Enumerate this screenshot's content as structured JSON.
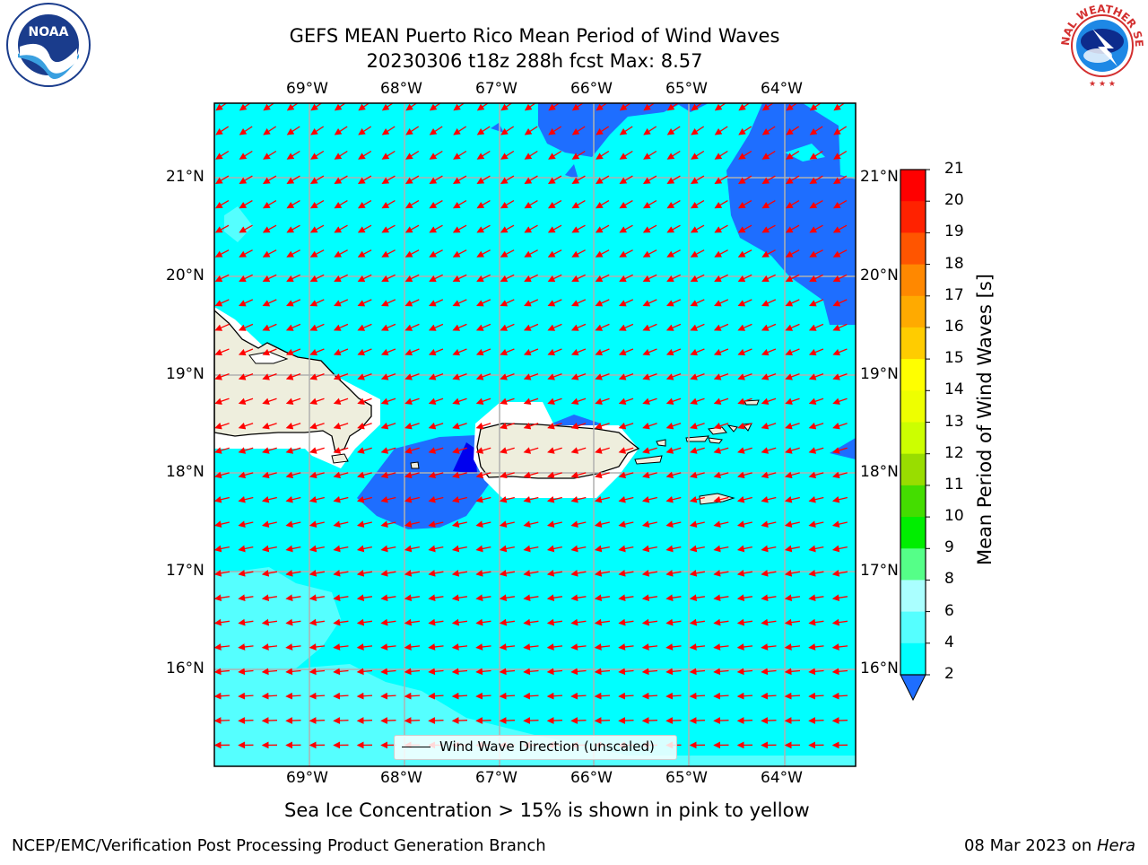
{
  "header": {
    "title_line1": "GEFS MEAN Puerto Rico Mean Period of Wind Waves",
    "title_line2": "20230306 t18z 288h fcst   Max: 8.57"
  },
  "logos": {
    "left": {
      "text": "NOAA",
      "ring_text": "NATIONAL OCEANIC AND ATMOSPHERIC ADMINISTRATION · U.S. DEPARTMENT OF COMMERCE"
    },
    "right": {
      "ring_text": "NATIONAL WEATHER SERVICE"
    }
  },
  "map": {
    "lon_labels": [
      "69°W",
      "68°W",
      "67°W",
      "66°W",
      "65°W",
      "64°W"
    ],
    "lat_labels": [
      "21°N",
      "20°N",
      "19°N",
      "18°N",
      "17°N",
      "16°N"
    ],
    "legend_label": "Wind Wave Direction (unscaled)",
    "arrow_color": "#ff0000",
    "background_color": "#00ffff",
    "land_color": "#eeeedd"
  },
  "colorbar": {
    "label": "Mean Period of Wind Waves [s]",
    "ticks": [
      "2",
      "4",
      "6",
      "8",
      "9",
      "10",
      "11",
      "12",
      "13",
      "14",
      "15",
      "16",
      "17",
      "18",
      "19",
      "20",
      "21"
    ],
    "colors": [
      "#0000ff",
      "#1e6eff",
      "#00ffff",
      "#55ffff",
      "#aaffff",
      "#55ff88",
      "#00ee00",
      "#44dd00",
      "#99dd00",
      "#ccff00",
      "#eeff00",
      "#ffff00",
      "#ffcc00",
      "#ffaa00",
      "#ff8800",
      "#ff5500",
      "#ff2200",
      "#ff0000"
    ]
  },
  "notes": {
    "sea_ice": "Sea Ice Concentration > 15% is shown in pink to yellow"
  },
  "footer": {
    "left": "NCEP/EMC/Verification Post Processing Product Generation Branch",
    "date": "08 Mar 2023 on ",
    "host": "Hera"
  }
}
